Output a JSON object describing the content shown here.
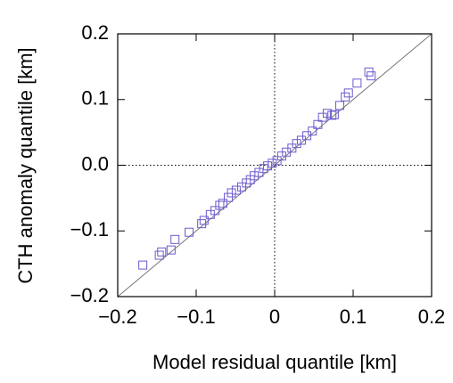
{
  "chart_data": {
    "type": "scatter",
    "x_label": "Model residual quantile [km]",
    "y_label": "CTH anomaly quantile [km]",
    "color": "#6a5acd",
    "x": [
      -0.168,
      -0.147,
      -0.144,
      -0.132,
      -0.127,
      -0.109,
      -0.093,
      -0.09,
      -0.082,
      -0.076,
      -0.07,
      -0.066,
      -0.059,
      -0.055,
      -0.049,
      -0.042,
      -0.036,
      -0.031,
      -0.026,
      -0.02,
      -0.014,
      -0.009,
      -0.003,
      0.003,
      0.009,
      0.015,
      0.022,
      0.028,
      0.034,
      0.041,
      0.048,
      0.055,
      0.061,
      0.067,
      0.073,
      0.076,
      0.083,
      0.09,
      0.094,
      0.105,
      0.12,
      0.123
    ],
    "y": [
      -0.152,
      -0.137,
      -0.132,
      -0.129,
      -0.113,
      -0.102,
      -0.089,
      -0.084,
      -0.075,
      -0.069,
      -0.061,
      -0.058,
      -0.049,
      -0.042,
      -0.038,
      -0.033,
      -0.027,
      -0.022,
      -0.016,
      -0.011,
      -0.005,
      -0.001,
      0.003,
      0.007,
      0.014,
      0.02,
      0.026,
      0.033,
      0.038,
      0.045,
      0.052,
      0.062,
      0.073,
      0.079,
      0.076,
      0.077,
      0.091,
      0.104,
      0.11,
      0.125,
      0.142,
      0.136
    ],
    "xlim": [
      -0.2,
      0.2
    ],
    "ylim": [
      -0.2,
      0.2
    ],
    "xticks": [
      {
        "value": -0.2,
        "label": "−0.2"
      },
      {
        "value": -0.1,
        "label": "−0.1"
      },
      0,
      0.1,
      0.2
    ],
    "yticks": [
      {
        "value": -0.2,
        "label": "−0.2"
      },
      {
        "value": -0.1,
        "label": "−0.1"
      },
      {
        "value": 0,
        "label": "0.0"
      },
      0.1,
      0.2
    ]
  }
}
